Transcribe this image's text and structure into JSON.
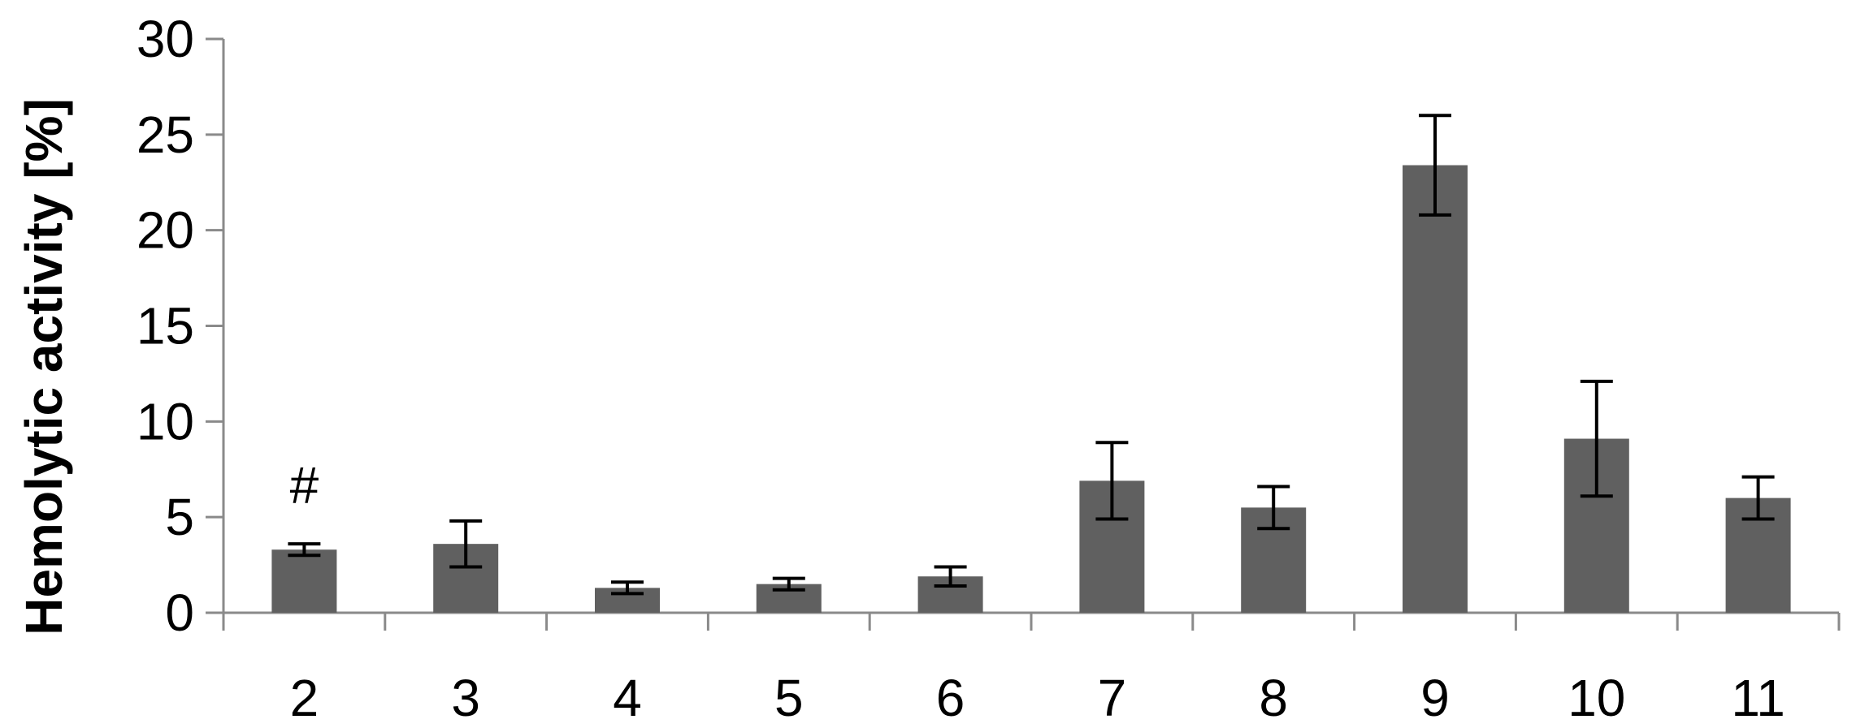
{
  "chart_data": {
    "type": "bar",
    "title": "",
    "xlabel": "",
    "ylabel": "Hemolytic activity [%]",
    "categories": [
      "2",
      "3",
      "4",
      "5",
      "6",
      "7",
      "8",
      "9",
      "10",
      "11"
    ],
    "values": [
      3.3,
      3.6,
      1.3,
      1.5,
      1.9,
      6.9,
      5.5,
      23.4,
      9.1,
      6.0
    ],
    "error": [
      0.3,
      1.2,
      0.3,
      0.3,
      0.5,
      2.0,
      1.1,
      2.6,
      3.0,
      1.1
    ],
    "ylim": [
      0,
      30
    ],
    "yticks": [
      0,
      5,
      10,
      15,
      20,
      25,
      30
    ],
    "grid": false,
    "legend": "none",
    "bar_color": "#606060",
    "annotations": [
      {
        "category": "2",
        "text": "#"
      }
    ]
  }
}
